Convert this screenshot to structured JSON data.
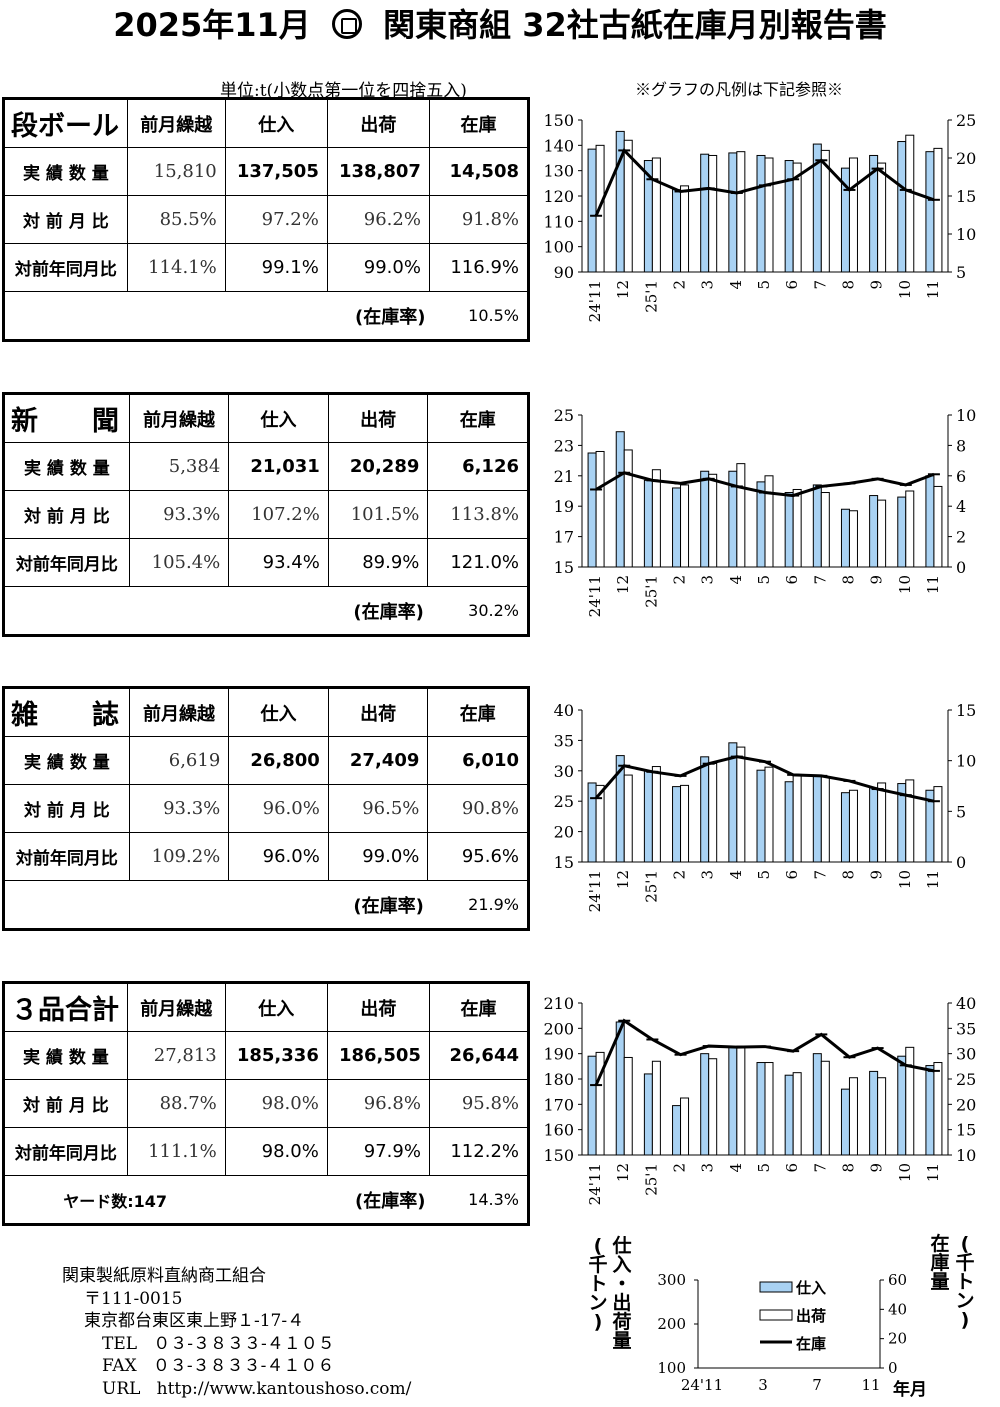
{
  "title": {
    "left": "2025年11月",
    "right": "関東商組  32社古紙在庫月別報告書"
  },
  "unit_note": "単位:t(小数点第一位を四捨五入)",
  "legend_note": "※グラフの凡例は下記参照※",
  "columns": [
    "前月繰越",
    "仕入",
    "出荷",
    "在庫"
  ],
  "row_labels": [
    "実 績 数 量",
    "対 前 月 比",
    "対前年同月比"
  ],
  "rate_label": "(在庫率)",
  "sections": [
    {
      "name": "段ボール",
      "actual": [
        "15,810",
        "137,505",
        "138,807",
        "14,508"
      ],
      "mom": [
        "85.5%",
        "97.2%",
        "96.2%",
        "91.8%"
      ],
      "yoy": [
        "114.1%",
        "99.1%",
        "99.0%",
        "116.9%"
      ],
      "rate": "10.5%",
      "extra": ""
    },
    {
      "name": "新　　聞",
      "actual": [
        "5,384",
        "21,031",
        "20,289",
        "6,126"
      ],
      "mom": [
        "93.3%",
        "107.2%",
        "101.5%",
        "113.8%"
      ],
      "yoy": [
        "105.4%",
        "93.4%",
        "89.9%",
        "121.0%"
      ],
      "rate": "30.2%",
      "extra": ""
    },
    {
      "name": "雑　　誌",
      "actual": [
        "6,619",
        "26,800",
        "27,409",
        "6,010"
      ],
      "mom": [
        "93.3%",
        "96.0%",
        "96.5%",
        "90.8%"
      ],
      "yoy": [
        "109.2%",
        "96.0%",
        "99.0%",
        "95.6%"
      ],
      "rate": "21.9%",
      "extra": ""
    },
    {
      "name": "３品合計",
      "actual": [
        "27,813",
        "185,336",
        "186,505",
        "26,644"
      ],
      "mom": [
        "88.7%",
        "98.0%",
        "96.8%",
        "95.8%"
      ],
      "yoy": [
        "111.1%",
        "98.0%",
        "97.9%",
        "112.2%"
      ],
      "rate": "14.3%",
      "extra": "ヤード数:147"
    }
  ],
  "chart_data": [
    {
      "type": "bar",
      "x": [
        "24'11",
        "12",
        "25'1",
        "2",
        "3",
        "4",
        "5",
        "6",
        "7",
        "8",
        "9",
        "10",
        "11"
      ],
      "ylim_left": [
        90,
        150
      ],
      "ylim_right": [
        5,
        25
      ],
      "left_ticks": [
        90,
        100,
        110,
        120,
        130,
        140,
        150
      ],
      "right_ticks": [
        5,
        10,
        15,
        20,
        25
      ],
      "series": [
        {
          "name": "仕入",
          "axis": "left",
          "values": [
            138.5,
            145.5,
            134,
            122.5,
            136.5,
            137,
            136,
            134,
            140.5,
            131,
            136,
            141.5,
            137.5
          ]
        },
        {
          "name": "出荷",
          "axis": "left",
          "values": [
            140,
            142,
            135,
            124,
            136,
            137.5,
            135,
            133,
            138,
            135,
            133,
            144,
            138.8
          ]
        },
        {
          "name": "在庫",
          "axis": "right",
          "values": [
            12.4,
            21,
            17.2,
            15.6,
            16,
            15.4,
            16.4,
            17.2,
            19.7,
            15.8,
            18.6,
            15.8,
            14.5
          ]
        }
      ]
    },
    {
      "type": "bar",
      "x": [
        "24'11",
        "12",
        "25'1",
        "2",
        "3",
        "4",
        "5",
        "6",
        "7",
        "8",
        "9",
        "10",
        "11"
      ],
      "ylim_left": [
        15,
        25
      ],
      "ylim_right": [
        0,
        10
      ],
      "left_ticks": [
        15,
        17,
        19,
        21,
        23,
        25
      ],
      "right_ticks": [
        0,
        2,
        4,
        6,
        8,
        10
      ],
      "series": [
        {
          "name": "仕入",
          "axis": "left",
          "values": [
            22.5,
            23.9,
            20.7,
            20.2,
            21.3,
            21.3,
            20.6,
            19.9,
            20.4,
            18.8,
            19.7,
            19.6,
            21.0
          ]
        },
        {
          "name": "出荷",
          "axis": "left",
          "values": [
            22.6,
            22.7,
            21.4,
            20.4,
            21.1,
            21.8,
            21.0,
            20.1,
            19.9,
            18.7,
            19.4,
            20.0,
            20.3
          ]
        },
        {
          "name": "在庫",
          "axis": "right",
          "values": [
            5.1,
            6.2,
            5.7,
            5.5,
            5.8,
            5.3,
            4.9,
            4.7,
            5.3,
            5.5,
            5.8,
            5.4,
            6.1
          ]
        }
      ]
    },
    {
      "type": "bar",
      "x": [
        "24'11",
        "12",
        "25'1",
        "2",
        "3",
        "4",
        "5",
        "6",
        "7",
        "8",
        "9",
        "10",
        "11"
      ],
      "ylim_left": [
        15,
        40
      ],
      "ylim_right": [
        0,
        15
      ],
      "left_ticks": [
        15,
        20,
        25,
        30,
        35,
        40
      ],
      "right_ticks": [
        0,
        5,
        10,
        15
      ],
      "series": [
        {
          "name": "仕入",
          "axis": "left",
          "values": [
            28,
            32.5,
            30,
            27.4,
            32.3,
            34.6,
            30.1,
            28.2,
            29.1,
            26.4,
            27.2,
            27.9,
            26.8
          ]
        },
        {
          "name": "出荷",
          "axis": "left",
          "values": [
            27.6,
            29.3,
            30.7,
            27.6,
            31.2,
            33.9,
            30.6,
            29.4,
            29,
            26.8,
            28,
            28.5,
            27.4
          ]
        },
        {
          "name": "在庫",
          "axis": "right",
          "values": [
            6.3,
            9.5,
            8.9,
            8.5,
            9.7,
            10.4,
            9.9,
            8.6,
            8.5,
            8,
            7.2,
            6.6,
            6
          ]
        }
      ]
    },
    {
      "type": "bar",
      "x": [
        "24'11",
        "12",
        "25'1",
        "2",
        "3",
        "4",
        "5",
        "6",
        "7",
        "8",
        "9",
        "10",
        "11"
      ],
      "ylim_left": [
        150,
        210
      ],
      "ylim_right": [
        10,
        40
      ],
      "left_ticks": [
        150,
        160,
        170,
        180,
        190,
        200,
        210
      ],
      "right_ticks": [
        10,
        15,
        20,
        25,
        30,
        35,
        40
      ],
      "series": [
        {
          "name": "仕入",
          "axis": "left",
          "values": [
            189,
            202.5,
            182,
            169.5,
            190,
            192.5,
            186.5,
            181.5,
            190,
            176,
            183,
            189,
            185.3
          ]
        },
        {
          "name": "出荷",
          "axis": "left",
          "values": [
            190.5,
            188.5,
            187,
            172.5,
            188,
            193,
            186.5,
            182.5,
            187,
            180.5,
            180.5,
            192.5,
            186.5
          ]
        },
        {
          "name": "在庫",
          "axis": "right",
          "values": [
            23.8,
            36.5,
            32.8,
            29.8,
            31.5,
            31.3,
            31.4,
            30.5,
            33.8,
            29.3,
            31.1,
            27.7,
            26.6
          ]
        }
      ]
    }
  ],
  "legend": {
    "left_axis_label": "仕入・出荷量",
    "left_axis_unit": "(千トン)",
    "right_axis_label": "在庫量",
    "right_axis_unit": "(千トン)",
    "left_ticks": [
      "300",
      "200",
      "100"
    ],
    "right_ticks": [
      "60",
      "40",
      "20",
      "0"
    ],
    "x_ticks": [
      "24'11",
      "3",
      "7",
      "11"
    ],
    "x_label": "年月",
    "items": [
      "仕入",
      "出荷",
      "在庫"
    ]
  },
  "footer": {
    "org": "関東製紙原料直納商工組合",
    "zip": "〒111-0015",
    "address": "東京都台東区東上野１-17-４",
    "tel_label": "TEL",
    "tel": "０３-３８３３-４１０５",
    "fax_label": "FAX",
    "fax": "０３-３８３３-４１０６",
    "url_label": "URL",
    "url": "http://www.kantoushoso.com/"
  },
  "colors": {
    "bar_fill": "#a9d2f3",
    "bar_stroke": "#000000",
    "line": "#000000"
  }
}
